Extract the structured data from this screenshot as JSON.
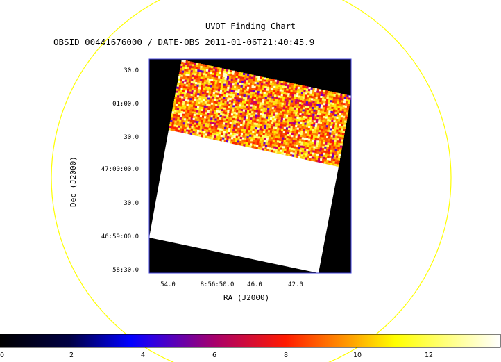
{
  "title": "UVOT Finding Chart",
  "subtitle": "OBSID 00441676000 / DATE-OBS 2011-01-06T21:40:45.9",
  "dec_axis": {
    "label": "Dec (J2000)",
    "ticks": [
      "30.0",
      "01:00.0",
      "30.0",
      "47:00:00.0",
      "30.0",
      "46:59:00.0",
      "58:30.0"
    ]
  },
  "ra_axis": {
    "label": "RA (J2000)",
    "ticks": [
      "54.0",
      "8:56:50.0",
      "46.0",
      "42.0"
    ]
  },
  "colorbar": {
    "range": [
      0,
      14
    ],
    "ticks": [
      "0",
      "2",
      "4",
      "6",
      "8",
      "10",
      "12"
    ]
  },
  "colors": {
    "circle": "#ffff00",
    "frame": "#3f3fd8"
  }
}
